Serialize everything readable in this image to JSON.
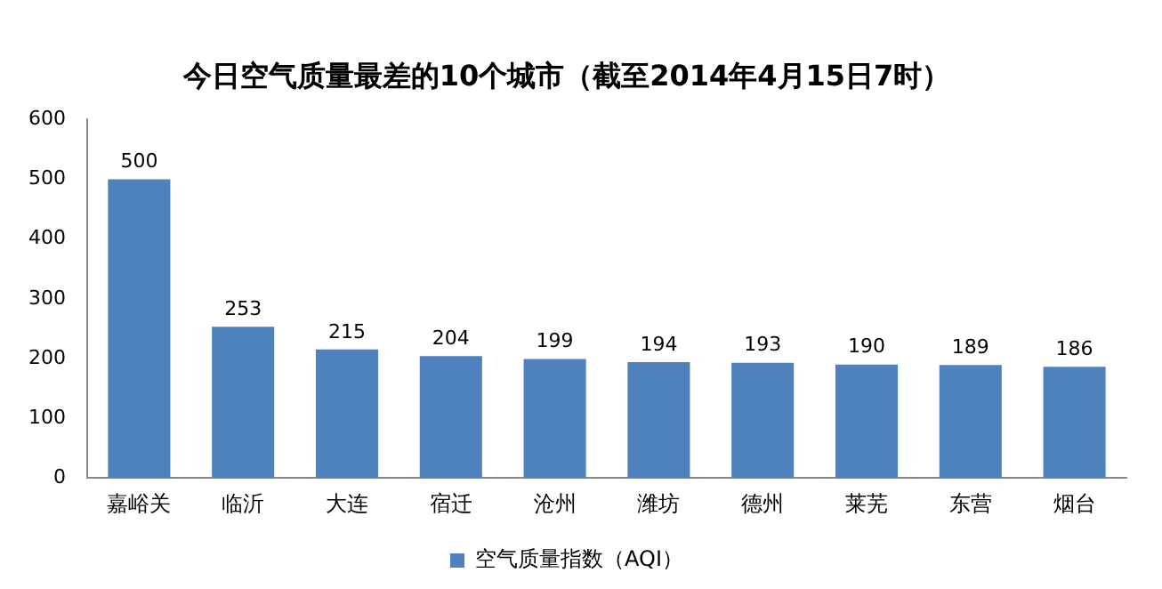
{
  "chart_data": {
    "type": "bar",
    "title": "今日空气质量最差的10个城市（截至2014年4月15日7时）",
    "categories": [
      "嘉峪关",
      "临沂",
      "大连",
      "宿迁",
      "沧州",
      "潍坊",
      "德州",
      "莱芜",
      "东营",
      "烟台"
    ],
    "series": [
      {
        "name": "空气质量指数（AQI）",
        "color": "#4f81bd",
        "values": [
          500,
          253,
          215,
          204,
          199,
          194,
          193,
          190,
          189,
          186
        ]
      }
    ],
    "ylim": [
      0,
      600
    ],
    "yticks": [
      0,
      100,
      200,
      300,
      400,
      500,
      600
    ],
    "grid": false,
    "legend": "bottom",
    "data_labels": true
  }
}
